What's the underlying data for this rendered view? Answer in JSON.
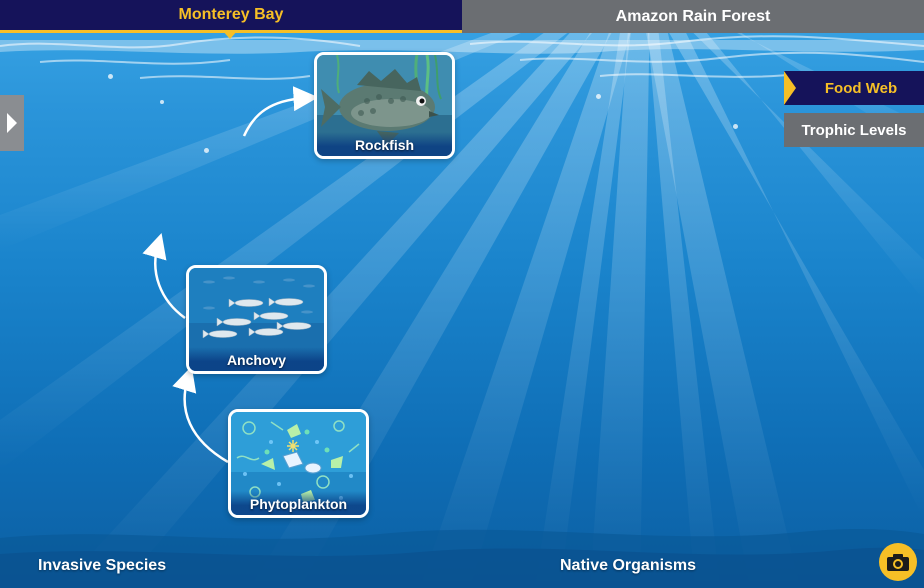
{
  "tabs": [
    {
      "label": "Monterey Bay",
      "active": true
    },
    {
      "label": "Amazon Rain Forest",
      "active": false
    }
  ],
  "views": {
    "food_web": "Food Web",
    "trophic_levels": "Trophic Levels",
    "selected": "Food Web"
  },
  "organisms": {
    "rockfish": "Rockfish",
    "anchovy": "Anchovy",
    "phytoplankton": "Phytoplankton"
  },
  "bottom": {
    "invasive": "Invasive Species",
    "native": "Native Organisms"
  },
  "icons": {
    "side_handle": "play-arrow-icon",
    "camera": "camera-icon"
  },
  "colors": {
    "active_tab_bg": "#15135a",
    "accent": "#f6bf26",
    "inactive_bg": "#6b6e72",
    "water_top": "#3aa6e6",
    "water_bottom": "#0c5fa3"
  }
}
